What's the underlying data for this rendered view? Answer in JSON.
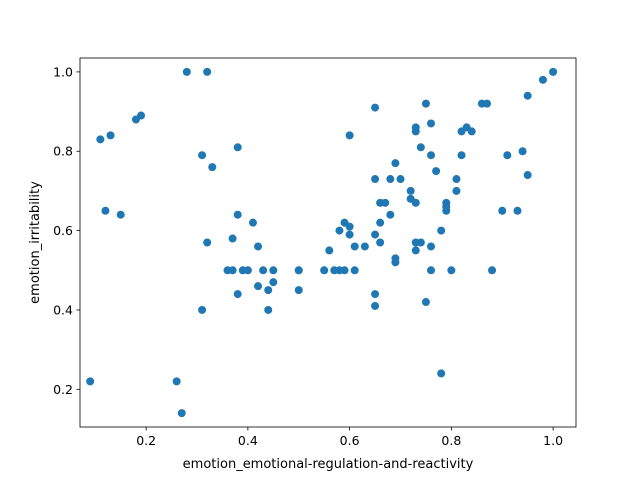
{
  "chart_data": {
    "type": "scatter",
    "title": "",
    "xlabel": "emotion_emotional-regulation-and-reactivity",
    "ylabel": "emotion_irritability",
    "xlim": [
      0.07,
      1.045
    ],
    "ylim": [
      0.105,
      1.035
    ],
    "xticks": [
      0.2,
      0.4,
      0.6,
      0.8,
      1.0
    ],
    "yticks": [
      0.2,
      0.4,
      0.6,
      0.8,
      1.0
    ],
    "xtick_labels": [
      "0.2",
      "0.4",
      "0.6",
      "0.8",
      "1.0"
    ],
    "ytick_labels": [
      "0.2",
      "0.4",
      "0.6",
      "0.8",
      "1.0"
    ],
    "grid": false,
    "marker_color": "#1f77b4",
    "points": [
      [
        0.09,
        0.22
      ],
      [
        0.11,
        0.83
      ],
      [
        0.12,
        0.65
      ],
      [
        0.13,
        0.84
      ],
      [
        0.15,
        0.64
      ],
      [
        0.18,
        0.88
      ],
      [
        0.19,
        0.89
      ],
      [
        0.26,
        0.22
      ],
      [
        0.27,
        0.14
      ],
      [
        0.28,
        1.0
      ],
      [
        0.31,
        0.79
      ],
      [
        0.31,
        0.4
      ],
      [
        0.32,
        1.0
      ],
      [
        0.32,
        0.57
      ],
      [
        0.33,
        0.76
      ],
      [
        0.36,
        0.5
      ],
      [
        0.37,
        0.58
      ],
      [
        0.37,
        0.5
      ],
      [
        0.38,
        0.81
      ],
      [
        0.38,
        0.64
      ],
      [
        0.38,
        0.44
      ],
      [
        0.39,
        0.5
      ],
      [
        0.4,
        0.5
      ],
      [
        0.41,
        0.62
      ],
      [
        0.42,
        0.56
      ],
      [
        0.42,
        0.46
      ],
      [
        0.43,
        0.5
      ],
      [
        0.44,
        0.45
      ],
      [
        0.44,
        0.4
      ],
      [
        0.45,
        0.5
      ],
      [
        0.45,
        0.47
      ],
      [
        0.5,
        0.5
      ],
      [
        0.5,
        0.5
      ],
      [
        0.5,
        0.45
      ],
      [
        0.55,
        0.5
      ],
      [
        0.56,
        0.55
      ],
      [
        0.57,
        0.5
      ],
      [
        0.58,
        0.6
      ],
      [
        0.58,
        0.5
      ],
      [
        0.59,
        0.62
      ],
      [
        0.59,
        0.5
      ],
      [
        0.6,
        0.84
      ],
      [
        0.6,
        0.61
      ],
      [
        0.6,
        0.59
      ],
      [
        0.61,
        0.56
      ],
      [
        0.61,
        0.5
      ],
      [
        0.63,
        0.56
      ],
      [
        0.65,
        0.91
      ],
      [
        0.65,
        0.73
      ],
      [
        0.65,
        0.59
      ],
      [
        0.65,
        0.44
      ],
      [
        0.65,
        0.41
      ],
      [
        0.66,
        0.67
      ],
      [
        0.66,
        0.62
      ],
      [
        0.66,
        0.57
      ],
      [
        0.67,
        0.67
      ],
      [
        0.68,
        0.73
      ],
      [
        0.68,
        0.64
      ],
      [
        0.69,
        0.77
      ],
      [
        0.69,
        0.53
      ],
      [
        0.69,
        0.52
      ],
      [
        0.7,
        0.73
      ],
      [
        0.72,
        0.7
      ],
      [
        0.72,
        0.68
      ],
      [
        0.73,
        0.86
      ],
      [
        0.73,
        0.85
      ],
      [
        0.73,
        0.67
      ],
      [
        0.73,
        0.57
      ],
      [
        0.73,
        0.55
      ],
      [
        0.74,
        0.81
      ],
      [
        0.74,
        0.57
      ],
      [
        0.75,
        0.92
      ],
      [
        0.75,
        0.42
      ],
      [
        0.76,
        0.87
      ],
      [
        0.76,
        0.79
      ],
      [
        0.76,
        0.56
      ],
      [
        0.76,
        0.5
      ],
      [
        0.77,
        0.75
      ],
      [
        0.78,
        0.6
      ],
      [
        0.78,
        0.24
      ],
      [
        0.79,
        0.67
      ],
      [
        0.79,
        0.66
      ],
      [
        0.79,
        0.65
      ],
      [
        0.8,
        0.5
      ],
      [
        0.81,
        0.73
      ],
      [
        0.81,
        0.7
      ],
      [
        0.82,
        0.85
      ],
      [
        0.82,
        0.79
      ],
      [
        0.83,
        0.86
      ],
      [
        0.84,
        0.85
      ],
      [
        0.86,
        0.92
      ],
      [
        0.87,
        0.92
      ],
      [
        0.88,
        0.5
      ],
      [
        0.9,
        0.65
      ],
      [
        0.91,
        0.79
      ],
      [
        0.93,
        0.65
      ],
      [
        0.94,
        0.8
      ],
      [
        0.95,
        0.94
      ],
      [
        0.95,
        0.74
      ],
      [
        0.98,
        0.98
      ],
      [
        1.0,
        1.0
      ]
    ]
  }
}
